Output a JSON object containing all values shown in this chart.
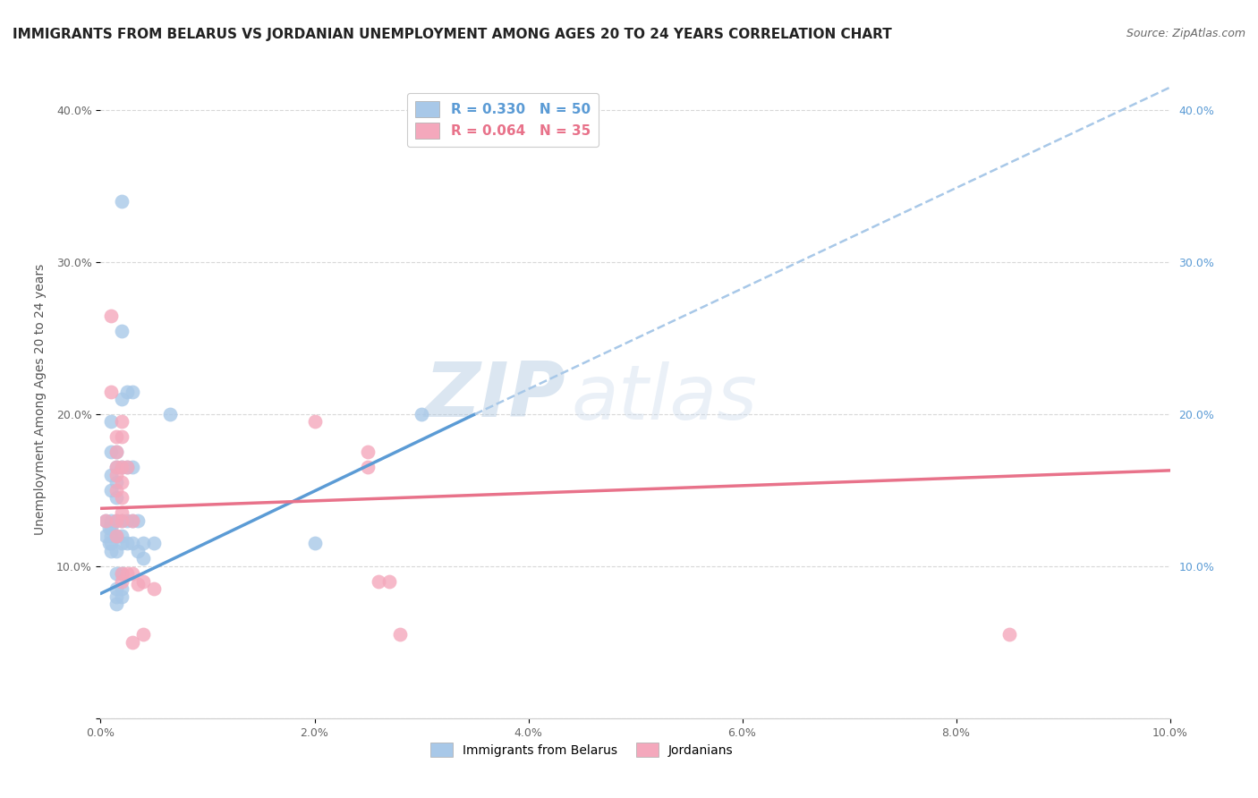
{
  "title": "IMMIGRANTS FROM BELARUS VS JORDANIAN UNEMPLOYMENT AMONG AGES 20 TO 24 YEARS CORRELATION CHART",
  "source": "Source: ZipAtlas.com",
  "ylabel": "Unemployment Among Ages 20 to 24 years",
  "xlim": [
    0.0,
    0.1
  ],
  "ylim": [
    0.0,
    0.42
  ],
  "x_ticks": [
    0.0,
    0.02,
    0.04,
    0.06,
    0.08,
    0.1
  ],
  "y_ticks_left": [
    0.0,
    0.1,
    0.2,
    0.3,
    0.4
  ],
  "y_ticks_right": [
    0.1,
    0.2,
    0.3,
    0.4
  ],
  "blue_color": "#5b9bd5",
  "pink_color": "#e8728a",
  "blue_scatter_color": "#a8c8e8",
  "pink_scatter_color": "#f4a8bc",
  "watermark_zip": "ZIP",
  "watermark_atlas": "atlas",
  "blue_points": [
    [
      0.0005,
      0.13
    ],
    [
      0.0005,
      0.12
    ],
    [
      0.0008,
      0.125
    ],
    [
      0.0008,
      0.115
    ],
    [
      0.001,
      0.195
    ],
    [
      0.001,
      0.175
    ],
    [
      0.001,
      0.16
    ],
    [
      0.001,
      0.15
    ],
    [
      0.001,
      0.13
    ],
    [
      0.001,
      0.125
    ],
    [
      0.001,
      0.12
    ],
    [
      0.001,
      0.115
    ],
    [
      0.001,
      0.11
    ],
    [
      0.0015,
      0.175
    ],
    [
      0.0015,
      0.165
    ],
    [
      0.0015,
      0.155
    ],
    [
      0.0015,
      0.145
    ],
    [
      0.0015,
      0.13
    ],
    [
      0.0015,
      0.12
    ],
    [
      0.0015,
      0.11
    ],
    [
      0.0015,
      0.095
    ],
    [
      0.0015,
      0.085
    ],
    [
      0.0015,
      0.08
    ],
    [
      0.0015,
      0.075
    ],
    [
      0.002,
      0.34
    ],
    [
      0.002,
      0.255
    ],
    [
      0.002,
      0.21
    ],
    [
      0.002,
      0.165
    ],
    [
      0.002,
      0.13
    ],
    [
      0.002,
      0.12
    ],
    [
      0.002,
      0.115
    ],
    [
      0.002,
      0.095
    ],
    [
      0.002,
      0.085
    ],
    [
      0.002,
      0.08
    ],
    [
      0.0025,
      0.215
    ],
    [
      0.0025,
      0.165
    ],
    [
      0.0025,
      0.13
    ],
    [
      0.0025,
      0.115
    ],
    [
      0.003,
      0.215
    ],
    [
      0.003,
      0.165
    ],
    [
      0.003,
      0.13
    ],
    [
      0.003,
      0.115
    ],
    [
      0.0035,
      0.13
    ],
    [
      0.0035,
      0.11
    ],
    [
      0.004,
      0.115
    ],
    [
      0.004,
      0.105
    ],
    [
      0.005,
      0.115
    ],
    [
      0.0065,
      0.2
    ],
    [
      0.02,
      0.115
    ],
    [
      0.03,
      0.2
    ]
  ],
  "pink_points": [
    [
      0.0005,
      0.13
    ],
    [
      0.001,
      0.265
    ],
    [
      0.001,
      0.215
    ],
    [
      0.0015,
      0.185
    ],
    [
      0.0015,
      0.175
    ],
    [
      0.0015,
      0.165
    ],
    [
      0.0015,
      0.16
    ],
    [
      0.0015,
      0.15
    ],
    [
      0.0015,
      0.13
    ],
    [
      0.0015,
      0.12
    ],
    [
      0.002,
      0.195
    ],
    [
      0.002,
      0.185
    ],
    [
      0.002,
      0.165
    ],
    [
      0.002,
      0.155
    ],
    [
      0.002,
      0.145
    ],
    [
      0.002,
      0.135
    ],
    [
      0.002,
      0.13
    ],
    [
      0.002,
      0.095
    ],
    [
      0.002,
      0.09
    ],
    [
      0.0025,
      0.165
    ],
    [
      0.0025,
      0.095
    ],
    [
      0.003,
      0.13
    ],
    [
      0.003,
      0.095
    ],
    [
      0.003,
      0.05
    ],
    [
      0.0035,
      0.088
    ],
    [
      0.004,
      0.09
    ],
    [
      0.004,
      0.055
    ],
    [
      0.005,
      0.085
    ],
    [
      0.02,
      0.195
    ],
    [
      0.025,
      0.175
    ],
    [
      0.025,
      0.165
    ],
    [
      0.026,
      0.09
    ],
    [
      0.027,
      0.09
    ],
    [
      0.028,
      0.055
    ],
    [
      0.085,
      0.055
    ]
  ],
  "blue_solid_line": {
    "x0": 0.0,
    "y0": 0.082,
    "x1": 0.035,
    "y1": 0.2
  },
  "blue_dashed_line": {
    "x0": 0.035,
    "y0": 0.2,
    "x1": 0.1,
    "y1": 0.415
  },
  "pink_solid_line": {
    "x0": 0.0,
    "y0": 0.138,
    "x1": 0.1,
    "y1": 0.163
  },
  "background_color": "#ffffff",
  "grid_color": "#d8d8d8",
  "title_fontsize": 11,
  "source_fontsize": 9,
  "axis_label_fontsize": 10,
  "tick_fontsize": 9,
  "legend_fontsize": 11
}
